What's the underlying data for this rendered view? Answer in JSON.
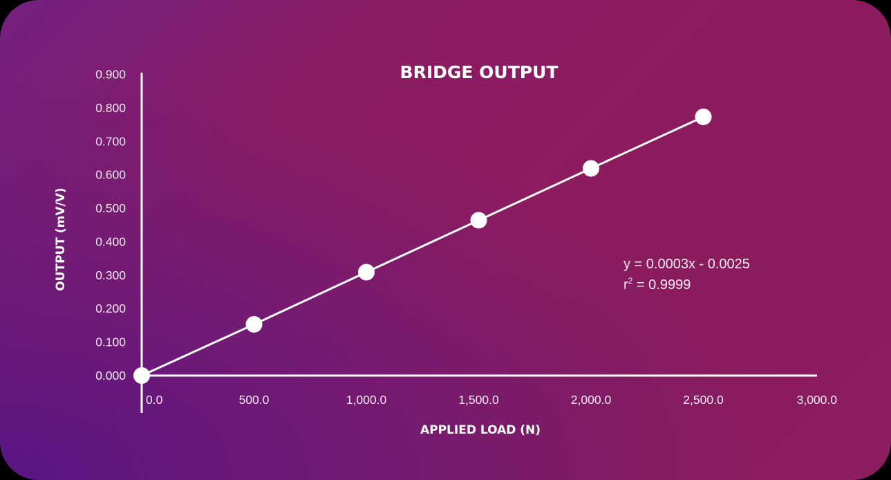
{
  "chart_data": {
    "type": "line",
    "title": "BRIDGE OUTPUT",
    "xlabel": "APPLIED LOAD (N)",
    "ylabel": "OUTPUT (mV/V)",
    "x": [
      0,
      500,
      1000,
      1500,
      2000,
      2500
    ],
    "series": [
      {
        "name": "Bridge output",
        "values": [
          0.0,
          0.153,
          0.309,
          0.464,
          0.619,
          0.773
        ]
      }
    ],
    "xlim": [
      0,
      3000
    ],
    "ylim": [
      0,
      0.9
    ],
    "x_ticks": [
      "0.0",
      "500.0",
      "1,000.0",
      "1,500.0",
      "2,000.0",
      "2,500.0",
      "3,000.0"
    ],
    "y_ticks": [
      "0.000",
      "0.100",
      "0.200",
      "0.300",
      "0.400",
      "0.500",
      "0.600",
      "0.700",
      "0.800",
      "0.900"
    ],
    "grid": false,
    "legend": "none",
    "annotations": {
      "equation": "y = 0.0003x - 0.0025",
      "r2_label": "r",
      "r2_sup": "2",
      "r2_value": " = 0.9999"
    }
  },
  "colors": {
    "line": "#ffffff",
    "marker": "#ffffff",
    "background_start": "#5a1a86",
    "background_end": "#8b1d60"
  }
}
